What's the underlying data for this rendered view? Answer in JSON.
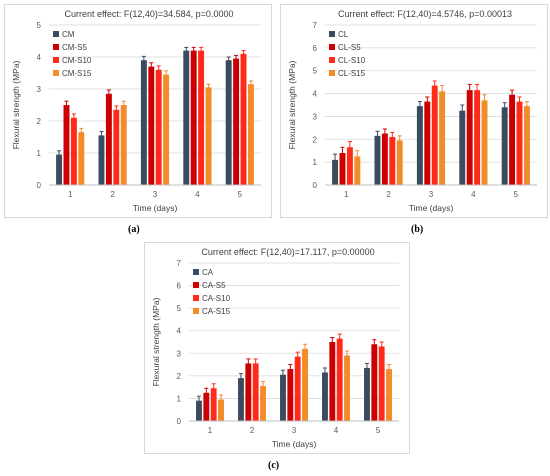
{
  "captions": [
    "(a)",
    "(b)",
    "(c)"
  ],
  "chart_data": [
    {
      "type": "bar",
      "title": "Current effect: F(12,40)=34.584, p=0.0000",
      "xlabel": "Time (days)",
      "ylabel": "Flexural strength (MPa)",
      "ylim": [
        0,
        5
      ],
      "yticks": [
        0,
        1,
        2,
        3,
        4,
        5
      ],
      "categories": [
        "1",
        "2",
        "3",
        "4",
        "5"
      ],
      "grid": true,
      "legend": "top-left",
      "series": [
        {
          "name": "CM",
          "color": "#3b4b5e",
          "values": [
            0.95,
            1.55,
            3.9,
            4.2,
            3.9
          ],
          "errors": [
            0.12,
            0.12,
            0.12,
            0.1,
            0.1
          ]
        },
        {
          "name": "CM-S5",
          "color": "#cc0000",
          "values": [
            2.5,
            2.85,
            3.7,
            4.2,
            3.95
          ],
          "errors": [
            0.12,
            0.12,
            0.12,
            0.1,
            0.1
          ]
        },
        {
          "name": "CM-S10",
          "color": "#ff2a1a",
          "values": [
            2.1,
            2.35,
            3.6,
            4.2,
            4.1
          ],
          "errors": [
            0.12,
            0.12,
            0.12,
            0.1,
            0.1
          ]
        },
        {
          "name": "CM-S15",
          "color": "#f28c28",
          "values": [
            1.65,
            2.5,
            3.45,
            3.05,
            3.15
          ],
          "errors": [
            0.12,
            0.12,
            0.12,
            0.1,
            0.1
          ]
        }
      ]
    },
    {
      "type": "bar",
      "title": "Current effect: F(12,40)=4.5746, p=0.00013",
      "xlabel": "Time (days)",
      "ylabel": "Flexural strength (MPa)",
      "ylim": [
        0,
        7
      ],
      "yticks": [
        0,
        1,
        2,
        3,
        4,
        5,
        6,
        7
      ],
      "categories": [
        "1",
        "2",
        "3",
        "4",
        "5"
      ],
      "grid": true,
      "legend": "top-left",
      "series": [
        {
          "name": "CL",
          "color": "#3b4b5e",
          "values": [
            1.1,
            2.15,
            3.45,
            3.25,
            3.4
          ],
          "errors": [
            0.25,
            0.2,
            0.2,
            0.25,
            0.2
          ]
        },
        {
          "name": "CL-S5",
          "color": "#cc0000",
          "values": [
            1.4,
            2.25,
            3.65,
            4.15,
            3.95
          ],
          "errors": [
            0.25,
            0.2,
            0.2,
            0.25,
            0.2
          ]
        },
        {
          "name": "CL-S10",
          "color": "#ff2a1a",
          "values": [
            1.65,
            2.1,
            4.35,
            4.15,
            3.65
          ],
          "errors": [
            0.25,
            0.2,
            0.2,
            0.25,
            0.2
          ]
        },
        {
          "name": "CL-S15",
          "color": "#f28c28",
          "values": [
            1.25,
            1.95,
            4.1,
            3.7,
            3.45
          ],
          "errors": [
            0.25,
            0.2,
            0.25,
            0.25,
            0.2
          ]
        }
      ]
    },
    {
      "type": "bar",
      "title": "Current effect: F(12,40)=17.117, p=0.00000",
      "xlabel": "Time (days)",
      "ylabel": "Flexural strength (MPa)",
      "ylim": [
        0,
        7
      ],
      "yticks": [
        0,
        1,
        2,
        3,
        4,
        5,
        6,
        7
      ],
      "categories": [
        "1",
        "2",
        "3",
        "4",
        "5"
      ],
      "grid": true,
      "legend": "top-left",
      "series": [
        {
          "name": "CA",
          "color": "#3b4b5e",
          "values": [
            0.9,
            1.9,
            2.05,
            2.15,
            2.35
          ],
          "errors": [
            0.2,
            0.2,
            0.2,
            0.2,
            0.2
          ]
        },
        {
          "name": "CA-S5",
          "color": "#cc0000",
          "values": [
            1.25,
            2.55,
            2.3,
            3.5,
            3.4
          ],
          "errors": [
            0.2,
            0.2,
            0.2,
            0.2,
            0.2
          ]
        },
        {
          "name": "CA-S10",
          "color": "#ff2a1a",
          "values": [
            1.45,
            2.55,
            2.85,
            3.65,
            3.3
          ],
          "errors": [
            0.2,
            0.2,
            0.2,
            0.2,
            0.2
          ]
        },
        {
          "name": "CA-S15",
          "color": "#f28c28",
          "values": [
            0.95,
            1.55,
            3.2,
            2.9,
            2.3
          ],
          "errors": [
            0.2,
            0.2,
            0.2,
            0.2,
            0.2
          ]
        }
      ]
    }
  ]
}
